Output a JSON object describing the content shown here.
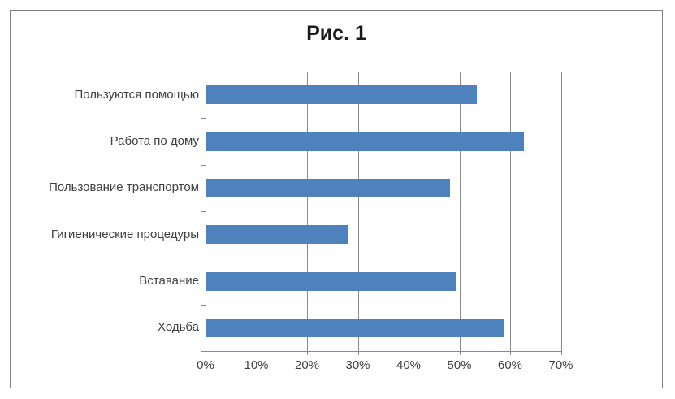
{
  "figure": {
    "title": "Рис. 1"
  },
  "chart_data": {
    "type": "bar",
    "orientation": "horizontal",
    "title": "Рис. 1",
    "categories": [
      "Пользуются помощью",
      "Работа по дому",
      "Пользование транспортом",
      "Гигиенические процедуры",
      "Вставание",
      "Ходьба"
    ],
    "values": [
      53.3,
      62.5,
      48.0,
      28.0,
      49.3,
      58.5
    ],
    "value_unit": "%",
    "xlim": [
      0,
      70
    ],
    "x_tick_labels": [
      "0%",
      "10%",
      "20%",
      "30%",
      "40%",
      "50%",
      "60%",
      "70%"
    ],
    "grid": true,
    "legend": "none",
    "colors": {
      "bar": "#4F81BD",
      "gridline": "#898989",
      "frame_border": "#808080",
      "title_text": "#1a1a1a",
      "axis_text": "#3f3f3f"
    }
  }
}
